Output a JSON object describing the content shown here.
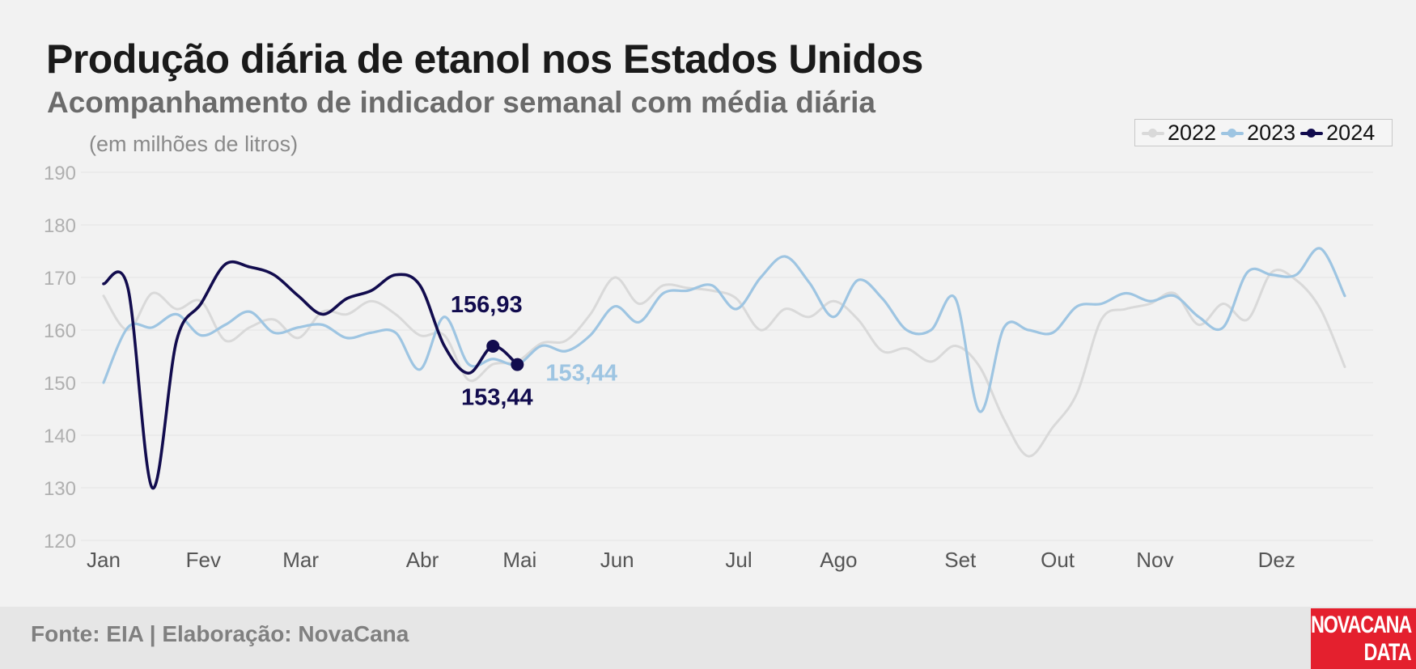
{
  "title": "Produção diária de etanol nos Estados Unidos",
  "subtitle": "Acompanhamento de indicador semanal com média diária",
  "unit_label": "(em milhões de litros)",
  "source": "Fonte: EIA | Elaboração: NovaCana",
  "logo": {
    "line1": "NOVACANA",
    "line2": "DATA"
  },
  "colors": {
    "series_2022": "#d9d9d9",
    "series_2023": "#9ec5e2",
    "series_2024": "#120c4e",
    "logo_bg": "#e4202e"
  },
  "chart_data": {
    "type": "line",
    "title": "Produção diária de etanol nos Estados Unidos",
    "subtitle": "Acompanhamento de indicador semanal com média diária",
    "ylabel": "(em milhões de litros)",
    "ylim": [
      120,
      190
    ],
    "yticks": [
      120,
      130,
      140,
      150,
      160,
      170,
      180,
      190
    ],
    "ytick_labels": [
      "120",
      "130",
      "140",
      "150",
      "160",
      "170",
      "180",
      "190"
    ],
    "xlim": [
      1,
      52
    ],
    "xticks": [
      {
        "label": "Jan",
        "week": 1
      },
      {
        "label": "Fev",
        "week": 5.1
      },
      {
        "label": "Mar",
        "week": 9.1
      },
      {
        "label": "Abr",
        "week": 14.1
      },
      {
        "label": "Mai",
        "week": 18.1
      },
      {
        "label": "Jun",
        "week": 22.1
      },
      {
        "label": "Jul",
        "week": 27.1
      },
      {
        "label": "Ago",
        "week": 31.2
      },
      {
        "label": "Set",
        "week": 36.2
      },
      {
        "label": "Out",
        "week": 40.2
      },
      {
        "label": "Nov",
        "week": 44.2
      },
      {
        "label": "Dez",
        "week": 49.2
      }
    ],
    "grid": true,
    "legend_position": "top-right",
    "series": [
      {
        "name": "2022",
        "x": [
          1,
          2,
          3,
          4,
          5,
          6,
          7,
          8,
          9,
          10,
          11,
          12,
          13,
          14,
          15,
          16,
          17,
          18,
          19,
          20,
          21,
          22,
          23,
          24,
          25,
          26,
          27,
          28,
          29,
          30,
          31,
          32,
          33,
          34,
          35,
          36,
          37,
          38,
          39,
          40,
          41,
          42,
          43,
          44,
          45,
          46,
          47,
          48,
          49,
          50,
          51,
          52
        ],
        "values": [
          166.5,
          160,
          167,
          164,
          165.5,
          158,
          160.5,
          162,
          158.5,
          163.5,
          163,
          165.5,
          163,
          159,
          159,
          150.5,
          153.5,
          154,
          157.5,
          158,
          163,
          170,
          165,
          168.5,
          168,
          167.5,
          166,
          160,
          164,
          162.5,
          165.5,
          162,
          156,
          156.5,
          154,
          157,
          153,
          143,
          136,
          141.5,
          148,
          162,
          164,
          165,
          167,
          161,
          165,
          162,
          171,
          169.5,
          164,
          153
        ]
      },
      {
        "name": "2023",
        "x": [
          1,
          2,
          3,
          4,
          5,
          6,
          7,
          8,
          9,
          10,
          11,
          12,
          13,
          14,
          15,
          16,
          17,
          18,
          19,
          20,
          21,
          22,
          23,
          24,
          25,
          26,
          27,
          28,
          29,
          30,
          31,
          32,
          33,
          34,
          35,
          36,
          37,
          38,
          39,
          40,
          41,
          42,
          43,
          44,
          45,
          46,
          47,
          48,
          49,
          50,
          51,
          52
        ],
        "values": [
          150,
          160.5,
          160.5,
          163,
          159,
          161,
          163.5,
          159.5,
          160.5,
          161,
          158.5,
          159.5,
          159.5,
          152.5,
          162.5,
          153.5,
          154.5,
          153.44,
          157,
          156,
          159,
          164.5,
          161.5,
          167,
          167.5,
          168.5,
          164,
          170,
          174,
          169,
          162.5,
          169.5,
          166,
          160,
          160,
          166,
          144.5,
          160.5,
          160,
          159.5,
          164.5,
          165,
          167,
          165.5,
          166.5,
          162.5,
          160.5,
          171,
          170.5,
          170.5,
          175.5,
          166.5
        ]
      },
      {
        "name": "2024",
        "x": [
          1,
          2,
          3,
          4,
          5,
          6,
          7,
          8,
          9,
          10,
          11,
          12,
          13,
          14,
          15,
          16,
          17,
          18
        ],
        "values": [
          168.8,
          168,
          130,
          158,
          165,
          172.5,
          172,
          170.5,
          166.5,
          163,
          166,
          167.5,
          170.5,
          168.5,
          157,
          151.8,
          156.93,
          153.44
        ],
        "markers_on_last_points": 2
      }
    ],
    "annotations": [
      {
        "text": "156,93",
        "series": "2024",
        "x": 17,
        "value": 156.93
      },
      {
        "text": "153,44",
        "series": "2024",
        "x": 18,
        "value": 153.44
      },
      {
        "text": "153,44",
        "series": "2023",
        "x": 18,
        "value": 153.44
      }
    ]
  }
}
